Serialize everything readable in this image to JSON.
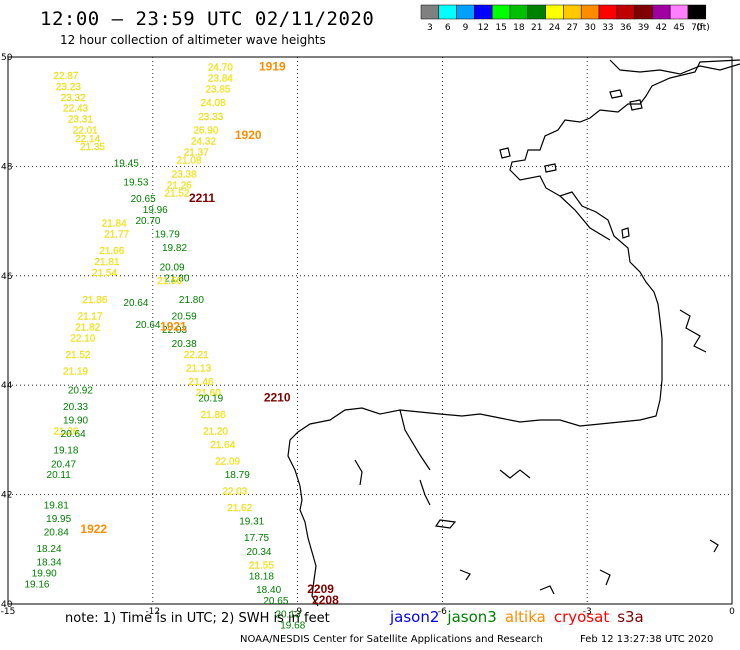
{
  "title": "12:00 – 23:59 UTC 02/11/2020",
  "subtitle": "12 hour collection of altimeter wave heights",
  "legend": {
    "unit": "(ft)",
    "bins": [
      {
        "label": "3",
        "color": "#808080"
      },
      {
        "label": "6",
        "color": "#00ffff"
      },
      {
        "label": "9",
        "color": "#00a0ff"
      },
      {
        "label": "12",
        "color": "#0000ff"
      },
      {
        "label": "15",
        "color": "#00ff00"
      },
      {
        "label": "18",
        "color": "#00c000"
      },
      {
        "label": "21",
        "color": "#008000"
      },
      {
        "label": "24",
        "color": "#ffff00"
      },
      {
        "label": "27",
        "color": "#ffc800"
      },
      {
        "label": "30",
        "color": "#ff8c00"
      },
      {
        "label": "33",
        "color": "#ff0000"
      },
      {
        "label": "36",
        "color": "#c00000"
      },
      {
        "label": "39",
        "color": "#800000"
      },
      {
        "label": "42",
        "color": "#a000a0"
      },
      {
        "label": "45",
        "color": "#ff80ff"
      },
      {
        "label": "70",
        "color": "#000000"
      }
    ]
  },
  "axes": {
    "lon_ticks": [
      "-15",
      "-12",
      "-9",
      "-6",
      "-3",
      "0"
    ],
    "lat_ticks": [
      "50",
      "48",
      "46",
      "44",
      "42",
      "40"
    ],
    "lon_range": [
      -15,
      0
    ],
    "lat_range": [
      40,
      50
    ],
    "grid": "dotted"
  },
  "colors": {
    "jason2": "#0000ff",
    "jason3": "#008000",
    "altika": "#ff8c00",
    "cryosat": "#ff0000",
    "s3a": "#800000"
  },
  "pass_labels": [
    {
      "text": "1919",
      "lon": -9.8,
      "lat": 49.75,
      "sat": "altika"
    },
    {
      "text": "1920",
      "lon": -10.3,
      "lat": 48.5,
      "sat": "altika"
    },
    {
      "text": "2211",
      "lon": -11.25,
      "lat": 47.35,
      "sat": "s3a"
    },
    {
      "text": "1921",
      "lon": -11.85,
      "lat": 45.0,
      "sat": "altika"
    },
    {
      "text": "2210",
      "lon": -9.7,
      "lat": 43.7,
      "sat": "s3a"
    },
    {
      "text": "1922",
      "lon": -13.5,
      "lat": 41.3,
      "sat": "altika"
    },
    {
      "text": "2209",
      "lon": -8.8,
      "lat": 40.2,
      "sat": "s3a"
    },
    {
      "text": "2208",
      "lon": -8.7,
      "lat": 40.0,
      "sat": "s3a"
    }
  ],
  "tracks": [
    {
      "sat": "altika",
      "c": "#ffff00",
      "pts": [
        [
          -13.8,
          49.6,
          "22.87"
        ],
        [
          -13.75,
          49.4,
          "23.23"
        ],
        [
          -13.65,
          49.2,
          "23.32"
        ],
        [
          -13.6,
          49.0,
          "22.43"
        ],
        [
          -13.5,
          48.8,
          "23.31"
        ],
        [
          -13.4,
          48.6,
          "22.01"
        ],
        [
          -13.35,
          48.45,
          "22.14"
        ],
        [
          -13.25,
          48.3,
          "21.35"
        ],
        [
          -12.8,
          46.9,
          "21.84"
        ],
        [
          -12.75,
          46.7,
          "21.77"
        ],
        [
          -12.85,
          46.4,
          "21.66"
        ],
        [
          -12.95,
          46.2,
          "21.81"
        ],
        [
          -13.0,
          46.0,
          "21.54"
        ],
        [
          -13.2,
          45.5,
          "21.86"
        ],
        [
          -13.3,
          45.2,
          "21.17"
        ],
        [
          -13.35,
          45.0,
          "21.82"
        ],
        [
          -13.45,
          44.8,
          "22.10"
        ],
        [
          -13.55,
          44.5,
          "21.52"
        ],
        [
          -13.6,
          44.2,
          "21.19"
        ],
        [
          -13.8,
          43.1,
          "21.26"
        ]
      ]
    },
    {
      "sat": "altika",
      "c": "#ffff00",
      "pts": [
        [
          -10.6,
          49.75,
          "24.70"
        ],
        [
          -10.6,
          49.55,
          "23.84"
        ],
        [
          -10.65,
          49.35,
          "23.85"
        ],
        [
          -10.75,
          49.1,
          "24.08"
        ],
        [
          -10.8,
          48.85,
          "23.33"
        ],
        [
          -10.9,
          48.6,
          "26.90"
        ],
        [
          -10.95,
          48.4,
          "24.32"
        ],
        [
          -11.1,
          48.2,
          "21.37"
        ],
        [
          -11.25,
          48.05,
          "21.08"
        ],
        [
          -11.35,
          47.8,
          "23.38"
        ],
        [
          -11.45,
          47.6,
          "21.26"
        ],
        [
          -11.5,
          47.45,
          "21.52"
        ]
      ]
    },
    {
      "sat": "jason3",
      "c": "#008000",
      "pts": [
        [
          -12.55,
          48.0,
          "19.45"
        ],
        [
          -12.35,
          47.65,
          "19.53"
        ],
        [
          -12.2,
          47.35,
          "20.65"
        ],
        [
          -11.95,
          47.15,
          "19.96"
        ],
        [
          -12.1,
          46.95,
          "20.70"
        ],
        [
          -11.7,
          46.7,
          "19.79"
        ],
        [
          -11.55,
          46.45,
          "19.82"
        ],
        [
          -11.6,
          46.1,
          "20.09"
        ],
        [
          -11.5,
          45.9,
          "21.80"
        ],
        [
          -11.2,
          45.5,
          "21.80"
        ],
        [
          -11.35,
          45.2,
          "20.59"
        ],
        [
          -11.55,
          44.95,
          "22.03"
        ],
        [
          -11.35,
          44.7,
          "20.38"
        ],
        [
          -12.35,
          45.45,
          "20.64"
        ],
        [
          -12.1,
          45.05,
          "20.64"
        ],
        [
          -13.5,
          43.85,
          "20.92"
        ],
        [
          -13.6,
          43.55,
          "20.33"
        ],
        [
          -13.6,
          43.3,
          "19.90"
        ],
        [
          -13.65,
          43.05,
          "20.64"
        ],
        [
          -13.8,
          42.75,
          "19.18"
        ],
        [
          -13.85,
          42.5,
          "20.47"
        ],
        [
          -13.95,
          42.3,
          "20.11"
        ],
        [
          -14.0,
          41.75,
          "19.81"
        ],
        [
          -13.95,
          41.5,
          "19.95"
        ],
        [
          -14.0,
          41.25,
          "20.84"
        ],
        [
          -14.15,
          40.95,
          "18.24"
        ],
        [
          -14.15,
          40.7,
          "18.34"
        ],
        [
          -14.25,
          40.5,
          "19.90"
        ],
        [
          -14.4,
          40.3,
          "19.16"
        ]
      ]
    },
    {
      "sat": "altika",
      "c": "#ffff00",
      "pts": [
        [
          -11.65,
          45.85,
          "21.50"
        ],
        [
          -11.1,
          44.5,
          "22.21"
        ],
        [
          -11.05,
          44.25,
          "21.13"
        ],
        [
          -11.0,
          44.0,
          "21.46"
        ],
        [
          -10.85,
          43.8,
          "21.60"
        ],
        [
          -10.75,
          43.4,
          "21.86"
        ],
        [
          -10.7,
          43.1,
          "21.20"
        ],
        [
          -10.55,
          42.85,
          "21.64"
        ],
        [
          -10.45,
          42.55,
          "22.09"
        ],
        [
          -10.3,
          42.0,
          "22.03"
        ],
        [
          -10.2,
          41.7,
          "21.62"
        ],
        [
          -9.75,
          40.65,
          "21.55"
        ]
      ]
    },
    {
      "sat": "jason3",
      "c": "#008000",
      "pts": [
        [
          -10.8,
          43.7,
          "20.19"
        ],
        [
          -10.25,
          42.3,
          "18.79"
        ],
        [
          -9.95,
          41.45,
          "19.31"
        ],
        [
          -9.85,
          41.15,
          "17.75"
        ],
        [
          -9.8,
          40.9,
          "20.34"
        ],
        [
          -9.75,
          40.45,
          "18.18"
        ],
        [
          -9.6,
          40.2,
          "18.40"
        ],
        [
          -9.45,
          40.0,
          "20.65"
        ],
        [
          -9.2,
          39.75,
          "20.13"
        ],
        [
          -9.1,
          39.55,
          "19.68"
        ]
      ]
    }
  ],
  "note": "note:  1) Time is in UTC;  2) SWH is in feet",
  "satellites": [
    {
      "name": "jason2",
      "color": "#0000ff"
    },
    {
      "name": "jason3",
      "color": "#008000"
    },
    {
      "name": "altika",
      "color": "#ff8c00"
    },
    {
      "name": "cryosat",
      "color": "#ff0000"
    },
    {
      "name": "s3a",
      "color": "#800000"
    }
  ],
  "footer": "NOAA/NESDIS Center for Satellite Applications and Research",
  "footer_timestamp": "Feb 12 13:27:38 UTC 2020"
}
